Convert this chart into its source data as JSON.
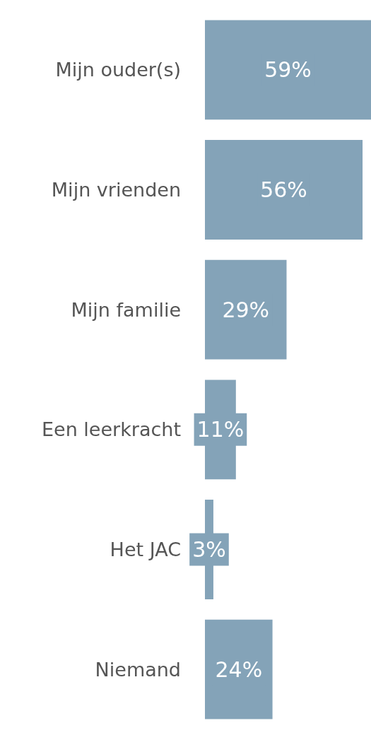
{
  "chart_data": {
    "type": "bar",
    "orientation": "horizontal",
    "categories": [
      "Mijn ouder(s)",
      "Mijn vrienden",
      "Mijn familie",
      "Een leerkracht",
      "Het JAC",
      "Niemand"
    ],
    "values": [
      59,
      56,
      29,
      11,
      3,
      24
    ],
    "value_labels": [
      "59%",
      "56%",
      "29%",
      "11%",
      "3%",
      "24%"
    ],
    "color": "#84a3b8"
  }
}
